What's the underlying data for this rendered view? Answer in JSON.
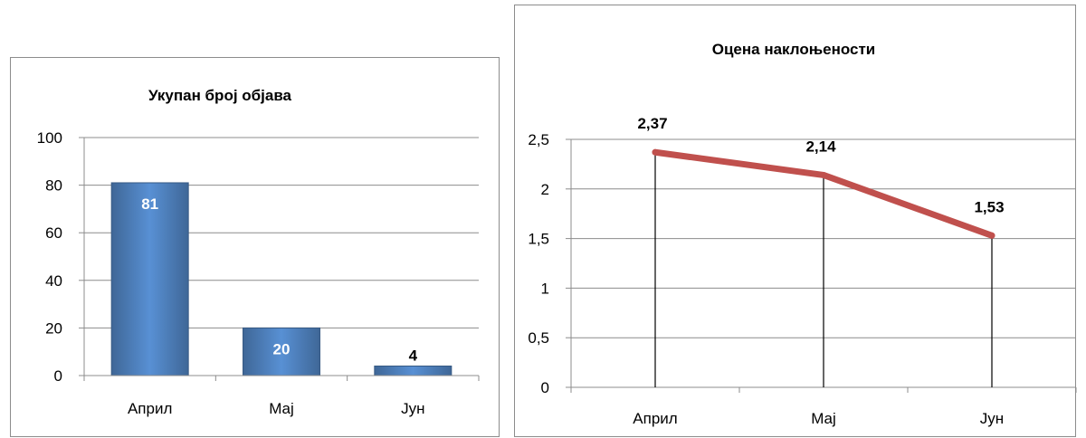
{
  "chart_data": [
    {
      "type": "bar",
      "title": "Укупан број објава",
      "categories": [
        "Април",
        "Мај",
        "Јун"
      ],
      "values": [
        81,
        20,
        4
      ],
      "ylim": [
        0,
        100
      ],
      "yticks": [
        "0",
        "20",
        "40",
        "60",
        "80",
        "100"
      ],
      "data_labels": [
        "81",
        "20",
        "4"
      ],
      "grid": true,
      "legend": "none",
      "color": "#4f81bd"
    },
    {
      "type": "line",
      "title": "Оцена наклоњености",
      "categories": [
        "Април",
        "Мај",
        "Јун"
      ],
      "values": [
        2.37,
        2.14,
        1.53
      ],
      "ylim": [
        0,
        2.5
      ],
      "yticks": [
        "0",
        "0,5",
        "1",
        "1,5",
        "2",
        "2,5"
      ],
      "data_labels": [
        "2,37",
        "2,14",
        "1,53"
      ],
      "drop_lines": true,
      "grid": true,
      "legend": "none",
      "color": "#c0504d"
    }
  ]
}
